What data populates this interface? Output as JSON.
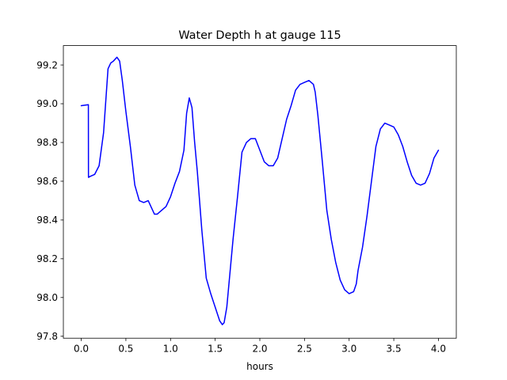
{
  "chart_data": {
    "type": "line",
    "title": "Water Depth h at gauge 115",
    "xlabel": "hours",
    "ylabel": "",
    "xlim": [
      -0.2,
      4.2
    ],
    "ylim": [
      97.79,
      99.3
    ],
    "xticks": [
      0.0,
      0.5,
      1.0,
      1.5,
      2.0,
      2.5,
      3.0,
      3.5,
      4.0
    ],
    "xtick_labels": [
      "0.0",
      "0.5",
      "1.0",
      "1.5",
      "2.0",
      "2.5",
      "3.0",
      "3.5",
      "4.0"
    ],
    "yticks": [
      97.8,
      98.0,
      98.2,
      98.4,
      98.6,
      98.8,
      99.0,
      99.2
    ],
    "ytick_labels": [
      "97.8",
      "98.0",
      "98.2",
      "98.4",
      "98.6",
      "98.8",
      "99.0",
      "99.2"
    ],
    "grid": false,
    "series": [
      {
        "color": "#0000ff",
        "x": [
          0.0,
          0.08,
          0.081,
          0.1,
          0.15,
          0.2,
          0.25,
          0.3,
          0.33,
          0.36,
          0.4,
          0.43,
          0.46,
          0.5,
          0.55,
          0.6,
          0.65,
          0.7,
          0.75,
          0.78,
          0.82,
          0.85,
          0.9,
          0.95,
          1.0,
          1.05,
          1.1,
          1.15,
          1.18,
          1.21,
          1.24,
          1.27,
          1.3,
          1.35,
          1.4,
          1.45,
          1.5,
          1.55,
          1.58,
          1.6,
          1.63,
          1.65,
          1.7,
          1.75,
          1.8,
          1.85,
          1.9,
          1.95,
          2.0,
          2.05,
          2.1,
          2.15,
          2.2,
          2.25,
          2.3,
          2.35,
          2.4,
          2.45,
          2.5,
          2.55,
          2.6,
          2.62,
          2.65,
          2.7,
          2.75,
          2.8,
          2.85,
          2.9,
          2.95,
          3.0,
          3.05,
          3.08,
          3.1,
          3.15,
          3.2,
          3.25,
          3.3,
          3.35,
          3.4,
          3.45,
          3.5,
          3.55,
          3.6,
          3.65,
          3.7,
          3.75,
          3.8,
          3.85,
          3.9,
          3.95,
          4.0
        ],
        "y": [
          98.99,
          98.995,
          98.62,
          98.625,
          98.635,
          98.68,
          98.85,
          99.18,
          99.21,
          99.22,
          99.24,
          99.22,
          99.12,
          98.96,
          98.78,
          98.58,
          98.5,
          98.49,
          98.5,
          98.47,
          98.43,
          98.43,
          98.45,
          98.47,
          98.52,
          98.59,
          98.65,
          98.76,
          98.95,
          99.03,
          98.98,
          98.8,
          98.65,
          98.35,
          98.1,
          98.02,
          97.95,
          97.88,
          97.86,
          97.87,
          97.95,
          98.05,
          98.3,
          98.52,
          98.75,
          98.8,
          98.82,
          98.82,
          98.76,
          98.7,
          98.68,
          98.68,
          98.72,
          98.82,
          98.92,
          98.99,
          99.07,
          99.1,
          99.11,
          99.12,
          99.1,
          99.06,
          98.94,
          98.7,
          98.45,
          98.3,
          98.18,
          98.09,
          98.04,
          98.02,
          98.03,
          98.07,
          98.14,
          98.26,
          98.42,
          98.6,
          98.78,
          98.87,
          98.9,
          98.89,
          98.88,
          98.84,
          98.78,
          98.7,
          98.63,
          98.59,
          98.58,
          98.59,
          98.64,
          98.72,
          98.76
        ]
      }
    ]
  }
}
